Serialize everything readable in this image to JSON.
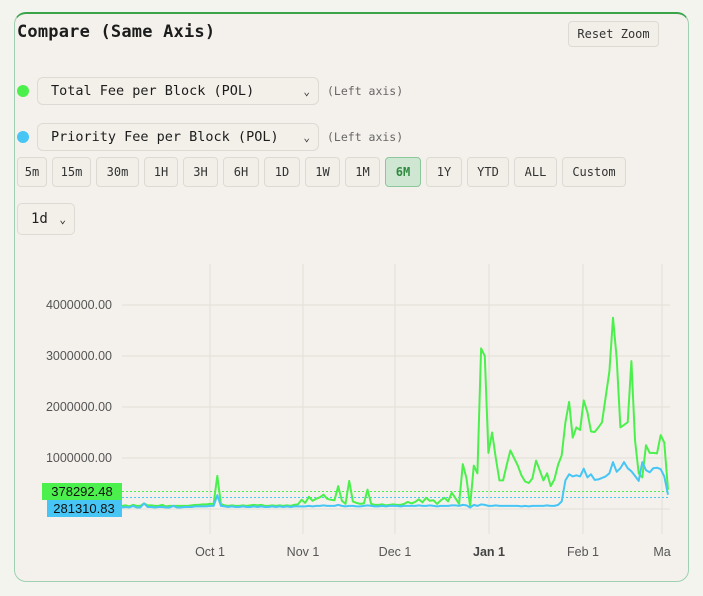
{
  "panel": {
    "title": "Compare (Same Axis)",
    "reset_zoom_label": "Reset Zoom"
  },
  "series_selectors": [
    {
      "label": "Total Fee per Block (POL)",
      "axis_note": "(Left axis)",
      "color": "#4cf04c"
    },
    {
      "label": "Priority Fee per Block (POL)",
      "axis_note": "(Left axis)",
      "color": "#47c6f5"
    }
  ],
  "timeframes": [
    {
      "label": "5m"
    },
    {
      "label": "15m"
    },
    {
      "label": "30m"
    },
    {
      "label": "1H"
    },
    {
      "label": "3H"
    },
    {
      "label": "6H"
    },
    {
      "label": "1D"
    },
    {
      "label": "1W"
    },
    {
      "label": "1M"
    },
    {
      "label": "6M",
      "active": true
    },
    {
      "label": "1Y"
    },
    {
      "label": "YTD"
    },
    {
      "label": "ALL"
    },
    {
      "label": "Custom"
    }
  ],
  "interval": {
    "value": "1d"
  },
  "price_badges": {
    "total": {
      "text": "378292.48",
      "color": "#4cf04c"
    },
    "priority": {
      "text": "281310.83",
      "color": "#47c6f5"
    }
  },
  "chart_data": {
    "type": "line",
    "title": "Compare (Same Axis)",
    "xlabel": "",
    "ylabel": "",
    "ylim": [
      0,
      4500000
    ],
    "grid": true,
    "y_ticks": [
      "1000000.00",
      "2000000.00",
      "3000000.00",
      "4000000.00"
    ],
    "x_ticks": [
      "Oct 1",
      "Nov 1",
      "Dec 1",
      "Jan 1",
      "Feb 1",
      "Ma"
    ],
    "x_range": [
      "~Sep 5",
      "~Mar 1"
    ],
    "series": [
      {
        "name": "Total Fee per Block (POL)",
        "color": "#4cf04c",
        "last_value": 378292.48,
        "values": [
          60000,
          70000,
          50000,
          80000,
          60000,
          60000,
          110000,
          70000,
          70000,
          60000,
          60000,
          80000,
          50000,
          60000,
          60000,
          60000,
          60000,
          60000,
          60000,
          70000,
          80000,
          80000,
          90000,
          90000,
          100000,
          100000,
          650000,
          100000,
          70000,
          60000,
          70000,
          60000,
          60000,
          70000,
          60000,
          70000,
          80000,
          70000,
          80000,
          60000,
          60000,
          70000,
          60000,
          70000,
          60000,
          70000,
          60000,
          80000,
          90000,
          180000,
          120000,
          240000,
          160000,
          200000,
          230000,
          280000,
          200000,
          180000,
          170000,
          450000,
          160000,
          100000,
          550000,
          150000,
          120000,
          100000,
          110000,
          380000,
          100000,
          80000,
          80000,
          90000,
          70000,
          80000,
          90000,
          80000,
          80000,
          100000,
          140000,
          110000,
          140000,
          190000,
          130000,
          220000,
          160000,
          170000,
          100000,
          170000,
          220000,
          150000,
          320000,
          210000,
          100000,
          880000,
          600000,
          50000,
          850000,
          700000,
          3150000,
          3000000,
          1100000,
          1500000,
          1000000,
          560000,
          560000,
          870000,
          1150000,
          1000000,
          850000,
          660000,
          540000,
          510000,
          600000,
          950000,
          760000,
          560000,
          700000,
          450000,
          580000,
          870000,
          1050000,
          1700000,
          2100000,
          1400000,
          1600000,
          1550000,
          2130000,
          1900000,
          1520000,
          1510000,
          1600000,
          1700000,
          2200000,
          2700000,
          3750000,
          2950000,
          1600000,
          1650000,
          1700000,
          2900000,
          1350000,
          700000,
          620000,
          1250000,
          1100000,
          1100000,
          1090000,
          1450000,
          1300000,
          378292
        ]
      },
      {
        "name": "Priority Fee per Block (POL)",
        "color": "#47c6f5",
        "last_value": 281310.83,
        "values": [
          30000,
          40000,
          30000,
          60000,
          30000,
          30000,
          110000,
          40000,
          40000,
          30000,
          40000,
          40000,
          30000,
          30000,
          60000,
          30000,
          30000,
          40000,
          40000,
          40000,
          50000,
          50000,
          50000,
          50000,
          60000,
          60000,
          270000,
          60000,
          50000,
          40000,
          50000,
          40000,
          40000,
          50000,
          40000,
          40000,
          50000,
          40000,
          50000,
          40000,
          40000,
          50000,
          40000,
          50000,
          40000,
          50000,
          40000,
          50000,
          50000,
          50000,
          50000,
          60000,
          50000,
          60000,
          60000,
          70000,
          60000,
          60000,
          60000,
          80000,
          60000,
          50000,
          60000,
          60000,
          50000,
          50000,
          60000,
          70000,
          60000,
          50000,
          50000,
          60000,
          50000,
          60000,
          60000,
          60000,
          50000,
          60000,
          60000,
          60000,
          60000,
          70000,
          60000,
          60000,
          70000,
          60000,
          50000,
          60000,
          60000,
          60000,
          70000,
          70000,
          60000,
          80000,
          70000,
          30000,
          80000,
          60000,
          90000,
          80000,
          60000,
          60000,
          70000,
          60000,
          60000,
          60000,
          60000,
          60000,
          60000,
          50000,
          60000,
          50000,
          60000,
          60000,
          60000,
          60000,
          70000,
          60000,
          60000,
          80000,
          150000,
          560000,
          680000,
          640000,
          660000,
          640000,
          790000,
          620000,
          680000,
          570000,
          580000,
          610000,
          640000,
          700000,
          920000,
          730000,
          800000,
          920000,
          800000,
          740000,
          650000,
          550000,
          920000,
          760000,
          720000,
          800000,
          810000,
          780000,
          640000,
          281311
        ]
      }
    ]
  }
}
